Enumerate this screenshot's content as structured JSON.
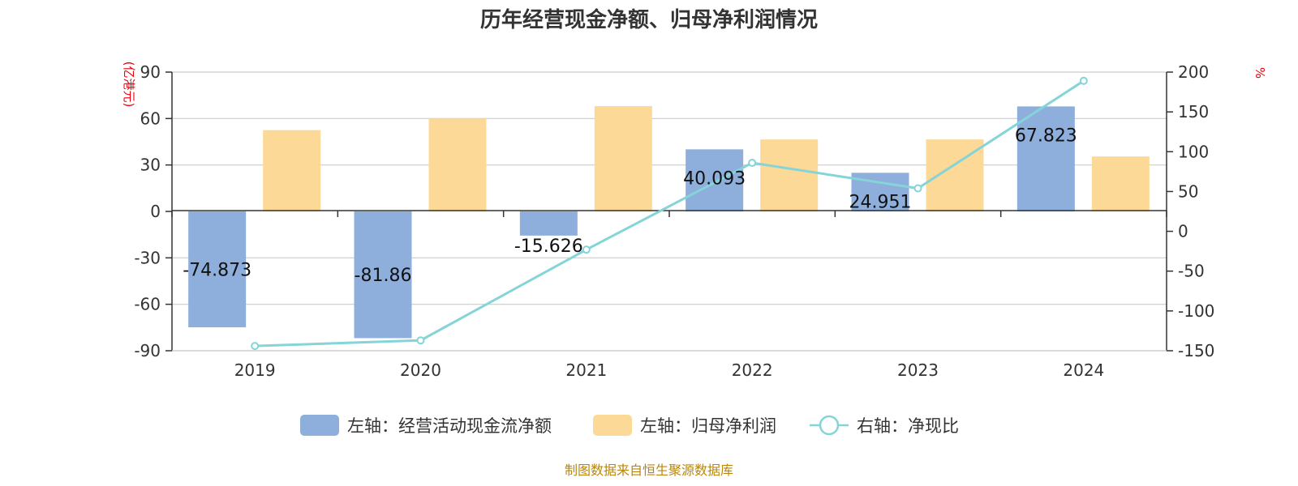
{
  "chart_data": {
    "type": "bar",
    "title": "历年经营现金净额、归母净利润情况",
    "categories": [
      "2019",
      "2020",
      "2021",
      "2022",
      "2023",
      "2024"
    ],
    "left_axis": {
      "unit": "(亿港元)",
      "ylim": [
        -90,
        90
      ],
      "ticks": [
        "90",
        "60",
        "30",
        "0",
        "-30",
        "-60",
        "-90"
      ]
    },
    "right_axis": {
      "unit": "%",
      "ylim": [
        -150,
        200
      ],
      "ticks": [
        "200",
        "150",
        "100",
        "50",
        "0",
        "-50",
        "-100",
        "-150"
      ]
    },
    "series": [
      {
        "name": "左轴：经营活动现金流净额",
        "type": "bar",
        "axis": "left",
        "color": "#8eaedc",
        "values": [
          -74.873,
          -81.86,
          -15.626,
          40.093,
          24.951,
          67.823
        ],
        "labels": [
          "-74.873",
          "-81.86",
          "-15.626",
          "40.093",
          "24.951",
          "67.823"
        ]
      },
      {
        "name": "左轴：归母净利润",
        "type": "bar",
        "axis": "left",
        "color": "#fdd998",
        "values": [
          52.5,
          60.0,
          68.0,
          46.5,
          46.5,
          35.5
        ]
      },
      {
        "name": "右轴：净现比",
        "type": "line",
        "axis": "right",
        "color": "#85d4d8",
        "values": [
          -144,
          -137,
          -23,
          86,
          54,
          189
        ]
      }
    ],
    "grid": true,
    "legend": "bottom"
  },
  "source_note": "制图数据来自恒生聚源数据库"
}
